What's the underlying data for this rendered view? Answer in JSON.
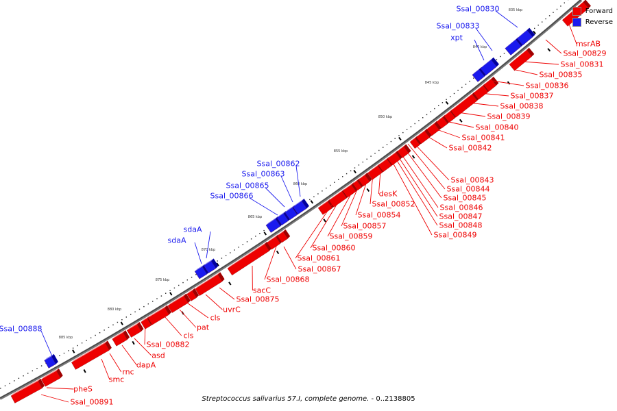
{
  "caption": {
    "genome": "Streptococcus salivarius 57.I, complete genome.",
    "range": " - 0..2138805"
  },
  "legend": {
    "forward": {
      "label": "Forward",
      "color": "#ee0000"
    },
    "reverse": {
      "label": "Reverse",
      "color": "#1a1aee"
    }
  },
  "ruler_labels": [
    "835 kbp",
    "840 kbp",
    "845 kbp",
    "850 kbp",
    "855 kbp",
    "860 kbp",
    "865 kbp",
    "870 kbp",
    "875 kbp",
    "880 kbp",
    "885 kbp"
  ],
  "reverse_labels": [
    "Ssal_00830",
    "Ssal_00833",
    "xpt",
    "Ssal_00862",
    "Ssal_00863",
    "Ssal_00865",
    "Ssal_00866",
    "sdaA",
    "sdaA",
    "Ssal_00888"
  ],
  "forward_labels": [
    "msrAB",
    "Ssal_00829",
    "Ssal_00831",
    "Ssal_00835",
    "Ssal_00836",
    "Ssal_00837",
    "Ssal_00838",
    "Ssal_00839",
    "Ssal_00840",
    "Ssal_00841",
    "Ssal_00842",
    "Ssal_00843",
    "Ssal_00844",
    "Ssal_00845",
    "Ssal_00846",
    "Ssal_00847",
    "Ssal_00848",
    "Ssal_00849",
    "desK",
    "Ssal_00852",
    "Ssal_00854",
    "Ssal_00857",
    "Ssal_00859",
    "Ssal_00860",
    "Ssal_00861",
    "Ssal_00867",
    "Ssal_00868",
    "sacC",
    "Ssal_00875",
    "uvrC",
    "cls",
    "pat",
    "cls",
    "Ssal_00882",
    "asd",
    "dapA",
    "rnc",
    "smc",
    "pheS",
    "Ssal_00891"
  ]
}
